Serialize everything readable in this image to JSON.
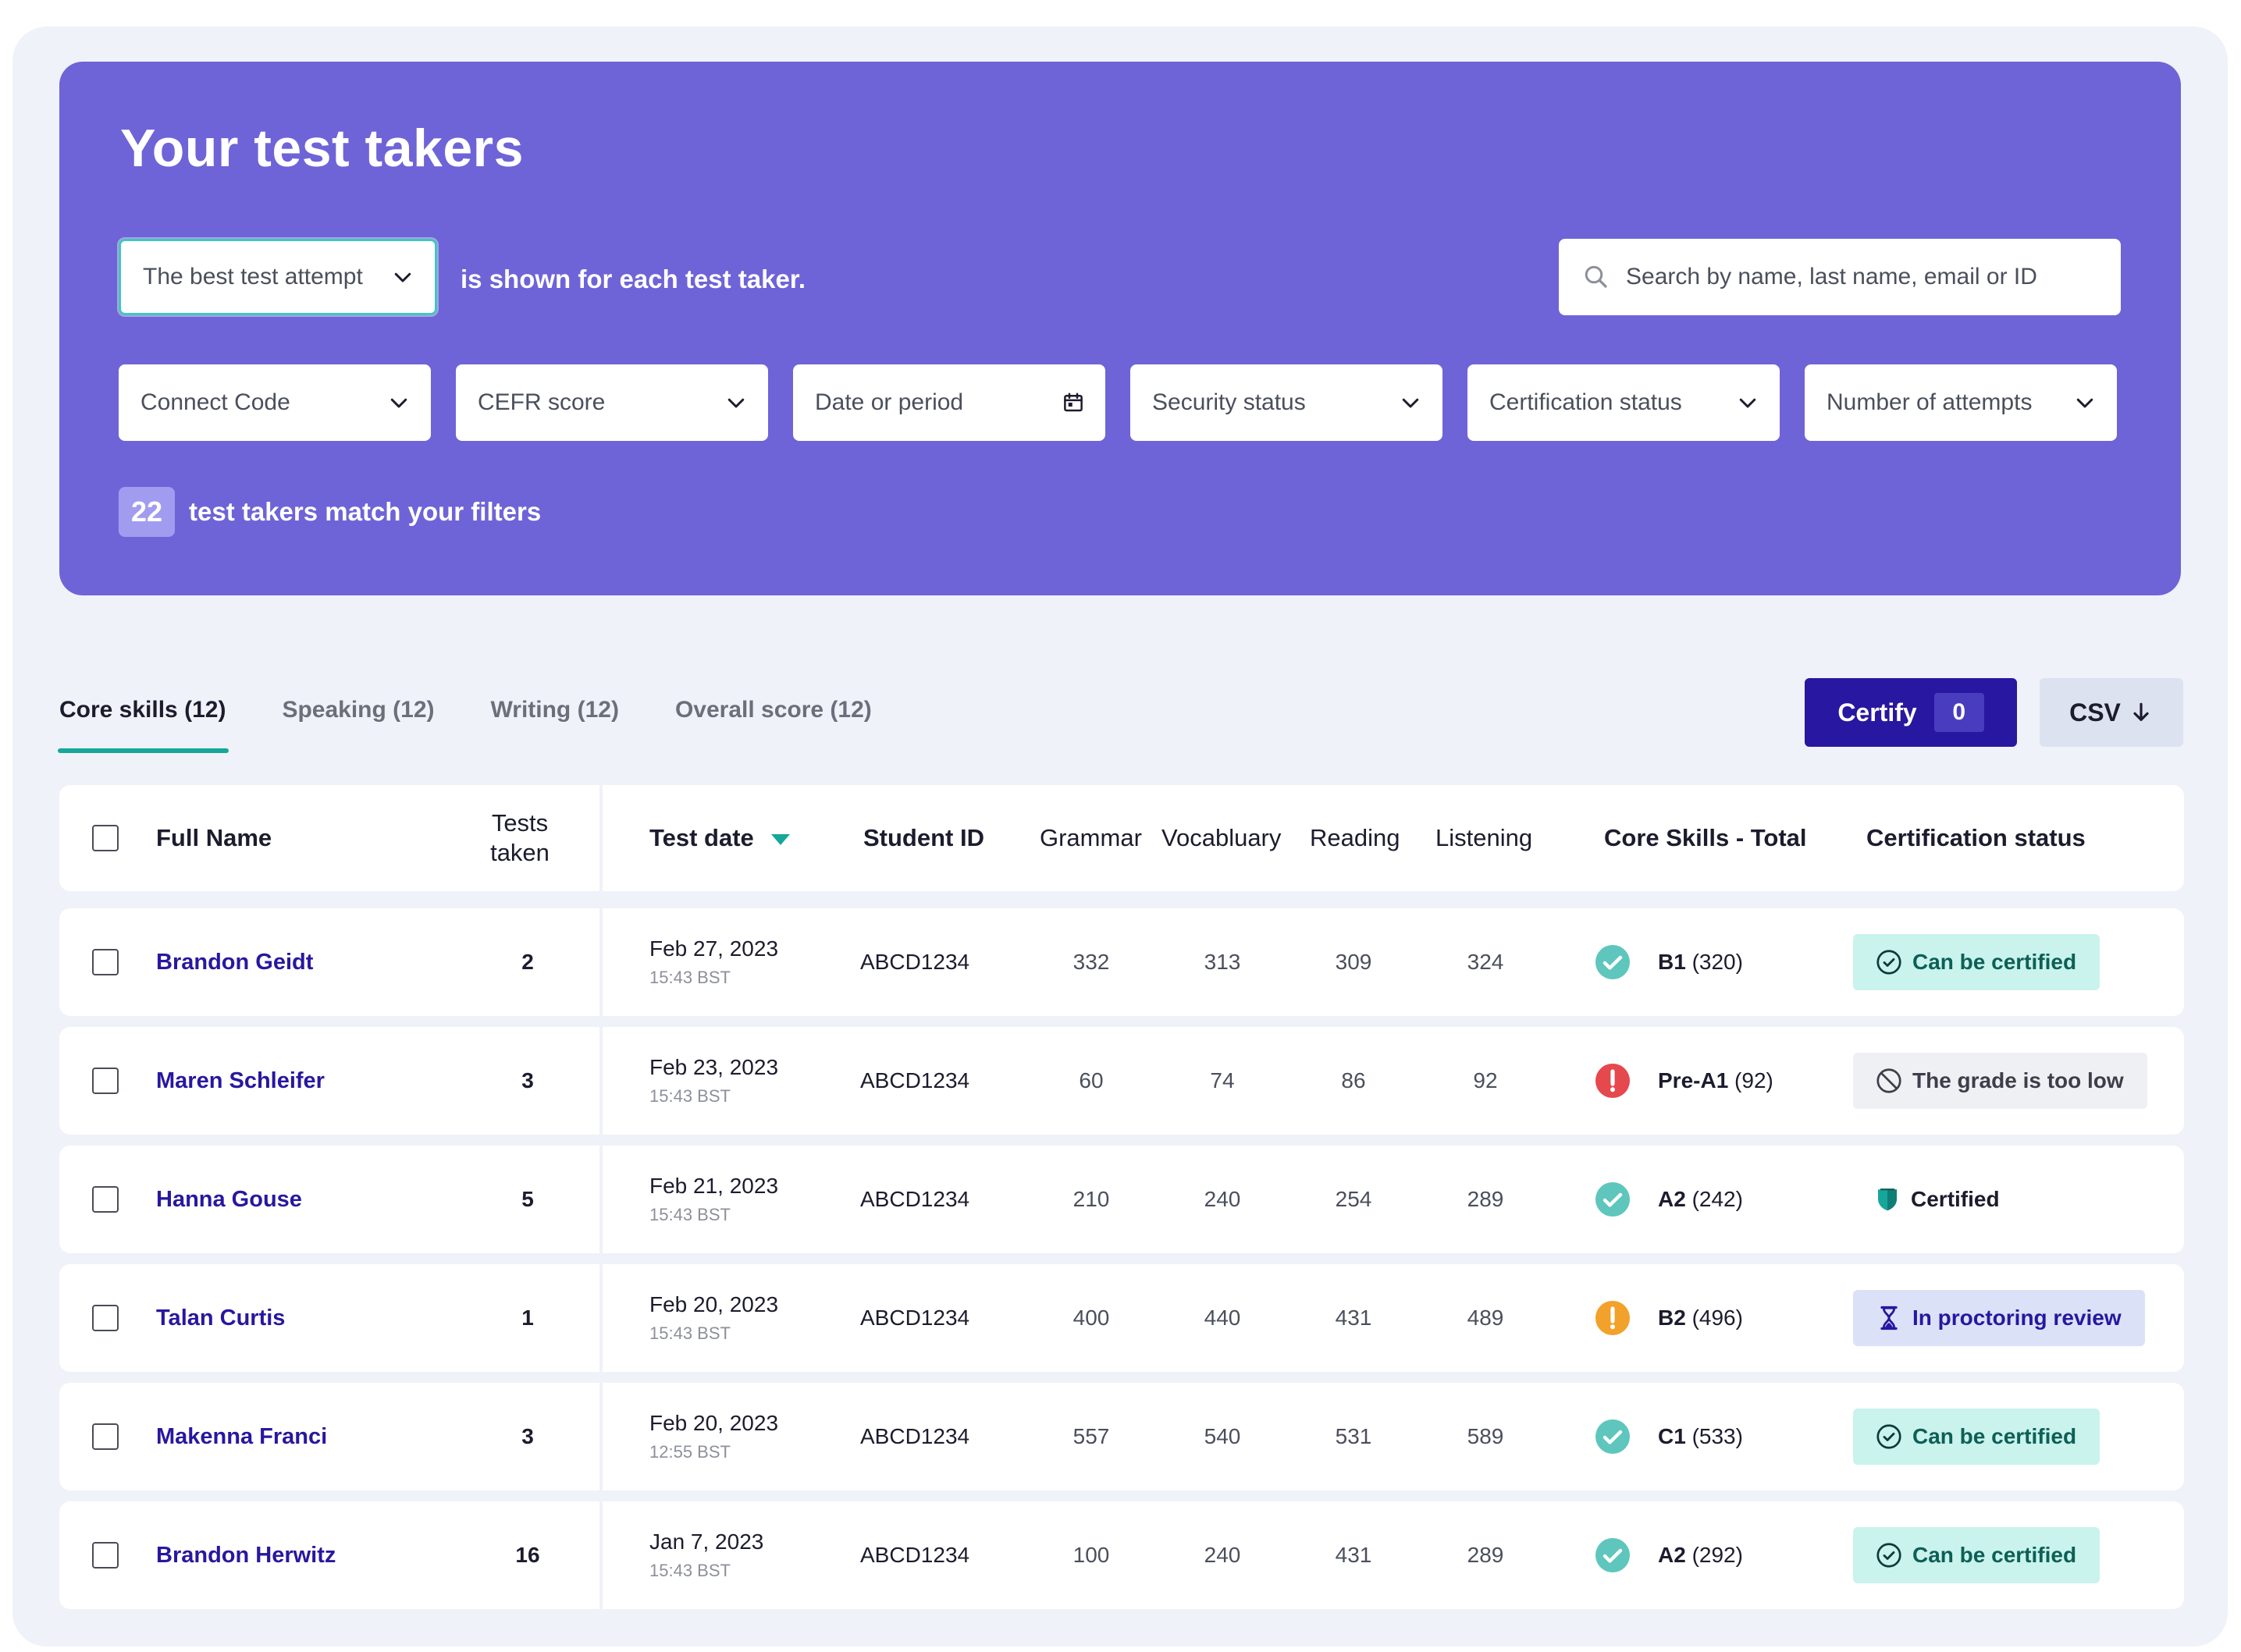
{
  "hero": {
    "title": "Your test takers",
    "attempt_select": "The best test attempt",
    "attempt_text": "is shown for each test taker.",
    "search_placeholder": "Search by name, last name, email or ID",
    "filters": [
      "Connect Code",
      "CEFR score",
      "Date or period",
      "Security status",
      "Certification status",
      "Number of attempts"
    ],
    "match_count": "22",
    "match_text": "test takers match your filters"
  },
  "tabs": [
    "Core skills (12)",
    "Speaking (12)",
    "Writing (12)",
    "Overall score (12)"
  ],
  "actions": {
    "certify_label": "Certify",
    "certify_count": "0",
    "csv_label": "CSV"
  },
  "table": {
    "headers": {
      "full_name": "Full Name",
      "tests_taken_1": "Tests",
      "tests_taken_2": "taken",
      "test_date": "Test date",
      "student_id": "Student ID",
      "grammar": "Grammar",
      "vocabulary": "Vocabluary",
      "reading": "Reading",
      "listening": "Listening",
      "core_total": "Core Skills - Total",
      "cert_status": "Certification status"
    },
    "rows": [
      {
        "name": "Brandon Geidt",
        "tests": "2",
        "date": "Feb 27, 2023",
        "time": "15:43 BST",
        "student_id": "ABCD1234",
        "grammar": "332",
        "vocabulary": "313",
        "reading": "309",
        "listening": "324",
        "level": "B1",
        "score": "(320)",
        "score_status": "ok",
        "cert": "Can be certified",
        "cert_type": "can"
      },
      {
        "name": "Maren Schleifer",
        "tests": "3",
        "date": "Feb 23, 2023",
        "time": "15:43 BST",
        "student_id": "ABCD1234",
        "grammar": "60",
        "vocabulary": "74",
        "reading": "86",
        "listening": "92",
        "level": "Pre-A1",
        "score": "(92)",
        "score_status": "error",
        "cert": "The grade is too low",
        "cert_type": "low"
      },
      {
        "name": "Hanna Gouse",
        "tests": "5",
        "date": "Feb 21, 2023",
        "time": "15:43 BST",
        "student_id": "ABCD1234",
        "grammar": "210",
        "vocabulary": "240",
        "reading": "254",
        "listening": "289",
        "level": "A2",
        "score": "(242)",
        "score_status": "ok",
        "cert": "Certified",
        "cert_type": "certified"
      },
      {
        "name": "Talan Curtis",
        "tests": "1",
        "date": "Feb 20, 2023",
        "time": "15:43 BST",
        "student_id": "ABCD1234",
        "grammar": "400",
        "vocabulary": "440",
        "reading": "431",
        "listening": "489",
        "level": "B2",
        "score": "(496)",
        "score_status": "warning",
        "cert": "In proctoring review",
        "cert_type": "review"
      },
      {
        "name": "Makenna Franci",
        "tests": "3",
        "date": "Feb 20, 2023",
        "time": "12:55 BST",
        "student_id": "ABCD1234",
        "grammar": "557",
        "vocabulary": "540",
        "reading": "531",
        "listening": "589",
        "level": "C1",
        "score": "(533)",
        "score_status": "ok",
        "cert": "Can be certified",
        "cert_type": "can"
      },
      {
        "name": "Brandon Herwitz",
        "tests": "16",
        "date": "Jan 7, 2023",
        "time": "15:43 BST",
        "student_id": "ABCD1234",
        "grammar": "100",
        "vocabulary": "240",
        "reading": "431",
        "listening": "289",
        "level": "A2",
        "score": "(292)",
        "score_status": "ok",
        "cert": "Can be certified",
        "cert_type": "can"
      }
    ]
  },
  "colors": {
    "hero_bg": "#6e64d7",
    "accent_teal": "#17a79a",
    "primary_button": "#2817a0",
    "ok_icon": "#5ec6bd",
    "error_icon": "#e5484d",
    "warning_icon": "#f2a12a"
  }
}
